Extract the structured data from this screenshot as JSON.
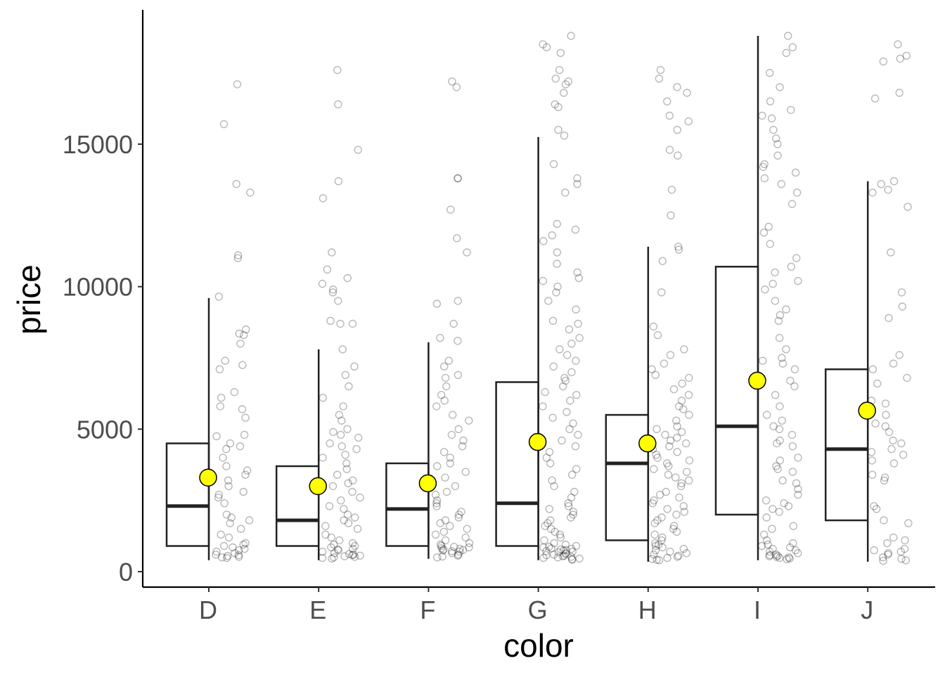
{
  "chart_data": {
    "type": "box",
    "title": "",
    "xlabel": "color",
    "ylabel": "price",
    "ylim": [
      -560,
      19600
    ],
    "y_ticks": [
      0,
      5000,
      10000,
      15000
    ],
    "y_tick_labels": [
      "0",
      "5000",
      "10000",
      "15000"
    ],
    "categories": [
      "D",
      "E",
      "F",
      "G",
      "H",
      "I",
      "J"
    ],
    "grid": false,
    "legend": "none",
    "boxes": [
      {
        "category": "D",
        "q1": 900,
        "median": 2300,
        "q3": 4500,
        "whisker_low": 400,
        "whisker_high": 9600,
        "mean": 3300
      },
      {
        "category": "E",
        "q1": 900,
        "median": 1800,
        "q3": 3700,
        "whisker_low": 400,
        "whisker_high": 7800,
        "mean": 3000
      },
      {
        "category": "F",
        "q1": 900,
        "median": 2200,
        "q3": 3800,
        "whisker_low": 450,
        "whisker_high": 8050,
        "mean": 3100
      },
      {
        "category": "G",
        "q1": 900,
        "median": 2400,
        "q3": 6650,
        "whisker_low": 400,
        "whisker_high": 15250,
        "mean": 4550
      },
      {
        "category": "H",
        "q1": 1100,
        "median": 3800,
        "q3": 5500,
        "whisker_low": 350,
        "whisker_high": 11400,
        "mean": 4500
      },
      {
        "category": "I",
        "q1": 2000,
        "median": 5100,
        "q3": 10700,
        "whisker_low": 400,
        "whisker_high": 18800,
        "mean": 6700
      },
      {
        "category": "J",
        "q1": 1800,
        "median": 4300,
        "q3": 7100,
        "whisker_low": 350,
        "whisker_high": 13700,
        "mean": 5650
      }
    ],
    "jittered_points": [
      {
        "category": "D",
        "prices": [
          17100,
          15700,
          13600,
          13300,
          11100,
          11000,
          9650,
          8500,
          8350,
          8300,
          8000,
          7400,
          7250,
          7100,
          6300,
          6100,
          5800,
          5700,
          5400,
          4800,
          4750,
          4500,
          4400,
          4300,
          4000,
          3700,
          3550,
          3400,
          3200,
          3000,
          2800,
          2700,
          2600,
          2400,
          2000,
          1900,
          1800,
          1700,
          1500,
          1300,
          1200,
          1000,
          950,
          900,
          850,
          800,
          750,
          700,
          650,
          600,
          580,
          550,
          520,
          500,
          480
        ]
      },
      {
        "category": "E",
        "prices": [
          17600,
          16400,
          14800,
          13700,
          13100,
          11200,
          10600,
          10300,
          10100,
          9900,
          9800,
          9500,
          8800,
          8700,
          8700,
          7800,
          7200,
          6900,
          6500,
          6100,
          5800,
          5500,
          5300,
          5000,
          4900,
          4800,
          4700,
          4500,
          4400,
          4300,
          4100,
          4000,
          3800,
          3600,
          3400,
          3200,
          3100,
          3000,
          2800,
          2600,
          2500,
          2300,
          2200,
          2000,
          1900,
          1800,
          1700,
          1600,
          1500,
          1300,
          1200,
          1100,
          1000,
          950,
          900,
          850,
          800,
          780,
          750,
          700,
          650,
          620,
          600,
          580,
          560,
          540,
          520,
          500,
          480,
          460
        ]
      },
      {
        "category": "F",
        "prices": [
          17200,
          17000,
          13800,
          13800,
          12700,
          11700,
          11200,
          9500,
          9400,
          8700,
          8200,
          8100,
          7400,
          7200,
          6900,
          6800,
          6500,
          6200,
          6000,
          5800,
          5500,
          5300,
          5000,
          4800,
          4600,
          4400,
          4200,
          4000,
          3800,
          3700,
          3500,
          3300,
          3100,
          3000,
          2800,
          2700,
          2500,
          2400,
          2300,
          2100,
          2000,
          1900,
          1800,
          1700,
          1600,
          1500,
          1400,
          1300,
          1200,
          1100,
          1000,
          950,
          900,
          870,
          850,
          820,
          800,
          780,
          760,
          740,
          720,
          700,
          650,
          600,
          560,
          530,
          500
        ]
      },
      {
        "category": "G",
        "prices": [
          18800,
          18500,
          18400,
          18200,
          17600,
          17300,
          17200,
          17100,
          16800,
          16400,
          16300,
          15500,
          15300,
          14300,
          13800,
          13600,
          13300,
          12200,
          12000,
          11800,
          11600,
          11200,
          10800,
          10500,
          10300,
          10200,
          10000,
          9800,
          9500,
          9200,
          8800,
          8700,
          8500,
          8200,
          8000,
          7800,
          7600,
          7400,
          7200,
          7000,
          6800,
          6700,
          6500,
          6300,
          6200,
          6000,
          5800,
          5600,
          5400,
          5200,
          5000,
          4800,
          4600,
          4400,
          4200,
          4000,
          3800,
          3600,
          3400,
          3200,
          3000,
          2800,
          2600,
          2400,
          2300,
          2200,
          2100,
          2000,
          1900,
          1800,
          1700,
          1600,
          1500,
          1400,
          1300,
          1200,
          1100,
          1000,
          950,
          900,
          870,
          850,
          820,
          800,
          780,
          760,
          740,
          720,
          700,
          680,
          650,
          620,
          600,
          580,
          560,
          540,
          520,
          500,
          480,
          460,
          440,
          420
        ]
      },
      {
        "category": "H",
        "prices": [
          17600,
          17300,
          17000,
          16800,
          16500,
          16000,
          15800,
          15500,
          14800,
          14600,
          13400,
          12500,
          11400,
          11300,
          10900,
          9800,
          8600,
          8300,
          7800,
          7600,
          7300,
          7100,
          6900,
          6800,
          6600,
          6400,
          6200,
          6000,
          5800,
          5700,
          5500,
          5300,
          5100,
          5000,
          4900,
          4800,
          4700,
          4600,
          4500,
          4400,
          4300,
          4200,
          4100,
          4000,
          3900,
          3800,
          3700,
          3600,
          3500,
          3400,
          3300,
          3200,
          3100,
          3000,
          2800,
          2700,
          2600,
          2500,
          2400,
          2300,
          2200,
          2100,
          2000,
          1900,
          1800,
          1700,
          1600,
          1500,
          1400,
          1300,
          1200,
          1100,
          1000,
          950,
          900,
          850,
          800,
          750,
          700,
          650,
          600,
          560,
          520,
          480,
          450,
          420,
          400
        ]
      },
      {
        "category": "I",
        "prices": [
          18800,
          18400,
          18200,
          17500,
          17000,
          16500,
          16200,
          16000,
          15900,
          15500,
          15200,
          15000,
          14600,
          14300,
          14200,
          14000,
          13800,
          13600,
          13300,
          12900,
          12100,
          11900,
          11500,
          11000,
          10700,
          10500,
          10200,
          10100,
          9900,
          9500,
          9200,
          9000,
          8800,
          8200,
          7800,
          7500,
          7400,
          7300,
          7100,
          6700,
          6500,
          6200,
          5800,
          5500,
          5300,
          5100,
          5000,
          4800,
          4600,
          4500,
          4400,
          4000,
          3900,
          3700,
          3600,
          3500,
          3200,
          3100,
          2900,
          2700,
          2500,
          2400,
          2300,
          2200,
          2100,
          1900,
          1600,
          1500,
          1300,
          1100,
          1000,
          950,
          900,
          850,
          800,
          750,
          700,
          650,
          600,
          580,
          560,
          540,
          520,
          500,
          480,
          460,
          440
        ]
      },
      {
        "category": "J",
        "prices": [
          18500,
          18100,
          18000,
          17900,
          16800,
          16600,
          13700,
          13600,
          13400,
          13300,
          12800,
          11200,
          9800,
          9300,
          8900,
          7600,
          7300,
          7100,
          6800,
          6600,
          6000,
          5900,
          5500,
          5200,
          5100,
          4900,
          4600,
          4500,
          4300,
          4200,
          4100,
          3900,
          3800,
          3400,
          3300,
          3200,
          2300,
          2200,
          1800,
          1700,
          1200,
          1100,
          1000,
          800,
          750,
          700,
          650,
          600,
          500,
          450,
          400,
          380
        ]
      }
    ]
  }
}
